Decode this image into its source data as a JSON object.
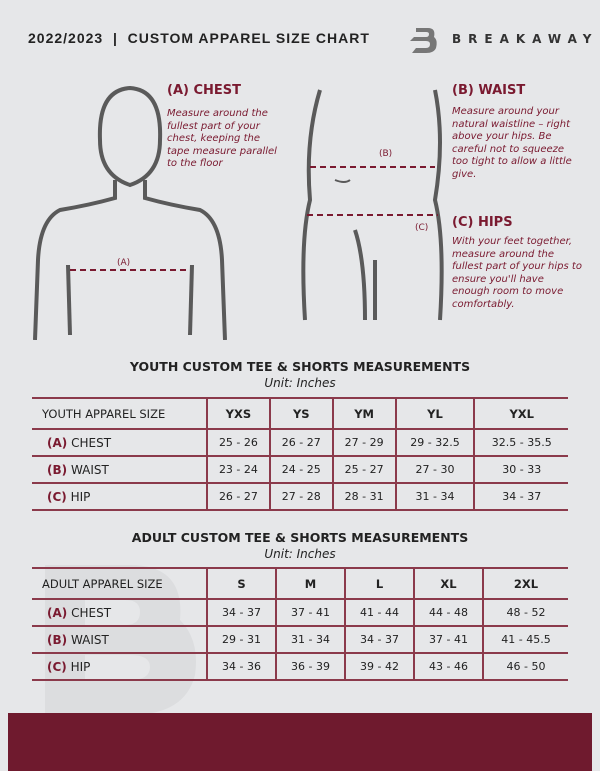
{
  "header": {
    "title": "2022/2023  |  CUSTOM APPAREL SIZE CHART",
    "brand": "BREAKAWAY"
  },
  "chest": {
    "heading": "(A) CHEST",
    "description": "Measure around the fullest part of your chest, keeping the tape measure parallel to the floor",
    "marker": "(A)"
  },
  "waist": {
    "heading": "(B) WAIST",
    "description": "Measure around your natural waistline – right above your hips. Be careful not to squeeze too tight to allow a little give.",
    "marker": "(B)"
  },
  "hips": {
    "heading": "(C) HIPS",
    "description": "With your feet together, measure around the fullest part of your hips to ensure you'll have enough room to move comfortably.",
    "marker": "(C)"
  },
  "youth": {
    "title": "YOUTH CUSTOM TEE & SHORTS MEASUREMENTS",
    "unit": "Unit: Inches",
    "corner": "YOUTH APPAREL SIZE",
    "sizes": [
      "YXS",
      "YS",
      "YM",
      "YL",
      "YXL"
    ],
    "rows": [
      {
        "code": "(A)",
        "name": "CHEST",
        "values": [
          "25 - 26",
          "26 - 27",
          "27 - 29",
          "29 - 32.5",
          "32.5 - 35.5"
        ]
      },
      {
        "code": "(B)",
        "name": "WAIST",
        "values": [
          "23 - 24",
          "24 - 25",
          "25 - 27",
          "27 - 30",
          "30 - 33"
        ]
      },
      {
        "code": "(C)",
        "name": "HIP",
        "values": [
          "26 - 27",
          "27 - 28",
          "28 - 31",
          "31 - 34",
          "34 - 37"
        ]
      }
    ]
  },
  "adult": {
    "title": "ADULT CUSTOM TEE & SHORTS MEASUREMENTS",
    "unit": "Unit: Inches",
    "corner": "ADULT APPAREL SIZE",
    "sizes": [
      "S",
      "M",
      "L",
      "XL",
      "2XL"
    ],
    "rows": [
      {
        "code": "(A)",
        "name": "CHEST",
        "values": [
          "34 - 37",
          "37 - 41",
          "41 - 44",
          "44 - 48",
          "48 - 52"
        ]
      },
      {
        "code": "(B)",
        "name": "WAIST",
        "values": [
          "29 - 31",
          "31 - 34",
          "34 - 37",
          "37 - 41",
          "41 - 45.5"
        ]
      },
      {
        "code": "(C)",
        "name": "HIP",
        "values": [
          "34 - 36",
          "36 - 39",
          "39 - 42",
          "43 - 46",
          "46 - 50"
        ]
      }
    ]
  },
  "colors": {
    "accent": "#7a1a30",
    "footer": "#6f1a2e",
    "background": "#e6e7e9"
  }
}
